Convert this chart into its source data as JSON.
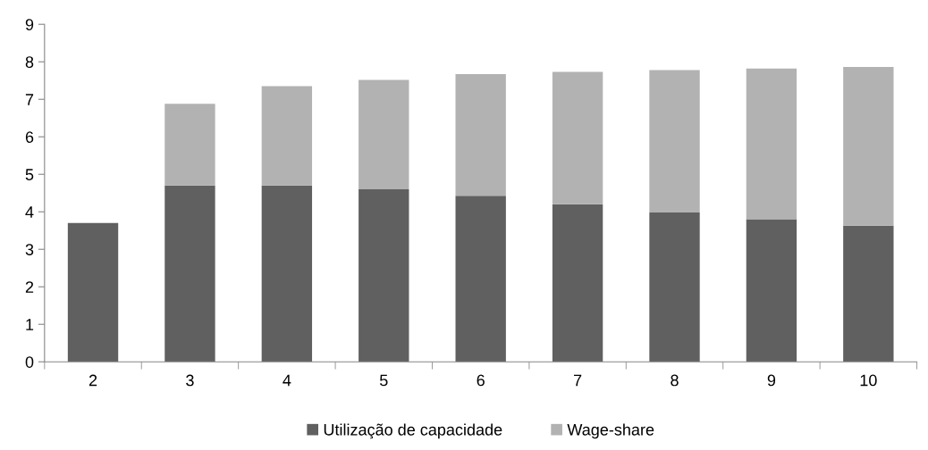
{
  "chart_data": {
    "type": "bar",
    "stacked": true,
    "categories": [
      "2",
      "3",
      "4",
      "5",
      "6",
      "7",
      "8",
      "9",
      "10"
    ],
    "series": [
      {
        "name": "Utilização de capacidade",
        "color": "#606060",
        "values": [
          3.7,
          4.7,
          4.7,
          4.6,
          4.43,
          4.2,
          3.98,
          3.8,
          3.63
        ]
      },
      {
        "name": "Wage-share",
        "color": "#b2b2b2",
        "values": [
          null,
          2.18,
          2.65,
          2.92,
          3.24,
          3.53,
          3.8,
          4.02,
          4.23
        ]
      }
    ],
    "ylim": [
      0,
      9
    ],
    "yticks": [
      0,
      1,
      2,
      3,
      4,
      5,
      6,
      7,
      8,
      9
    ],
    "grid": false,
    "legend": "bottom"
  }
}
